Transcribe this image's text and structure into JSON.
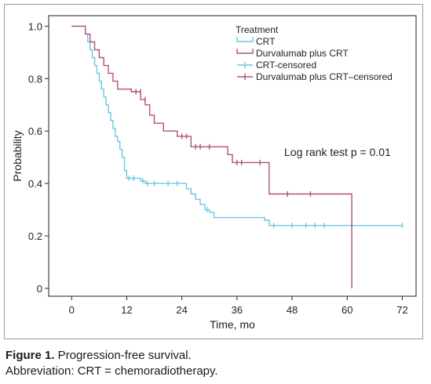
{
  "chart_data": {
    "type": "line",
    "subtype": "kaplan-meier step",
    "xlabel": "Time, mo",
    "ylabel": "Probability",
    "xlim": [
      -5,
      75
    ],
    "ylim": [
      -0.03,
      1.04
    ],
    "xticks": [
      0,
      12,
      24,
      36,
      48,
      60,
      72
    ],
    "yticks": [
      0,
      0.2,
      0.4,
      0.6,
      0.8,
      1.0
    ],
    "ytick_labels": [
      "0",
      "0.2",
      "0.4",
      "0.6",
      "0.8",
      "1.0"
    ],
    "grid": false,
    "legend": {
      "title": "Treatment",
      "placement": "top-right",
      "entries": [
        "CRT",
        "Durvalumab plus CRT",
        "CRT-censored",
        "Durvalumab plus CRT–censored"
      ]
    },
    "annotation": "Log rank test p = 0.01",
    "series": [
      {
        "name": "CRT",
        "color": "#6ec6e3",
        "steps": [
          [
            0,
            1.0
          ],
          [
            3,
            1.0
          ],
          [
            3,
            0.97
          ],
          [
            3.5,
            0.97
          ],
          [
            3.5,
            0.94
          ],
          [
            4,
            0.94
          ],
          [
            4,
            0.91
          ],
          [
            4.5,
            0.91
          ],
          [
            4.5,
            0.88
          ],
          [
            5,
            0.88
          ],
          [
            5,
            0.85
          ],
          [
            5.5,
            0.85
          ],
          [
            5.5,
            0.82
          ],
          [
            6,
            0.82
          ],
          [
            6,
            0.79
          ],
          [
            6.5,
            0.79
          ],
          [
            6.5,
            0.76
          ],
          [
            7,
            0.76
          ],
          [
            7,
            0.73
          ],
          [
            7.5,
            0.73
          ],
          [
            7.5,
            0.7
          ],
          [
            8,
            0.7
          ],
          [
            8,
            0.67
          ],
          [
            8.5,
            0.67
          ],
          [
            8.5,
            0.64
          ],
          [
            9,
            0.64
          ],
          [
            9,
            0.61
          ],
          [
            9.5,
            0.61
          ],
          [
            9.5,
            0.58
          ],
          [
            10,
            0.58
          ],
          [
            10,
            0.56
          ],
          [
            10.5,
            0.56
          ],
          [
            10.5,
            0.53
          ],
          [
            11,
            0.53
          ],
          [
            11,
            0.5
          ],
          [
            11.5,
            0.5
          ],
          [
            11.5,
            0.45
          ],
          [
            12,
            0.45
          ],
          [
            12,
            0.42
          ],
          [
            15,
            0.42
          ],
          [
            15,
            0.41
          ],
          [
            16,
            0.41
          ],
          [
            16,
            0.4
          ],
          [
            25,
            0.4
          ],
          [
            25,
            0.38
          ],
          [
            26,
            0.38
          ],
          [
            26,
            0.36
          ],
          [
            27,
            0.36
          ],
          [
            27,
            0.34
          ],
          [
            28,
            0.34
          ],
          [
            28,
            0.32
          ],
          [
            29,
            0.32
          ],
          [
            29,
            0.3
          ],
          [
            30,
            0.3
          ],
          [
            30,
            0.29
          ],
          [
            31,
            0.29
          ],
          [
            31,
            0.27
          ],
          [
            42,
            0.27
          ],
          [
            42,
            0.26
          ],
          [
            43,
            0.26
          ],
          [
            43,
            0.24
          ],
          [
            72,
            0.24
          ]
        ],
        "censored": [
          [
            12.5,
            0.42
          ],
          [
            13.5,
            0.42
          ],
          [
            15.5,
            0.41
          ],
          [
            16.5,
            0.4
          ],
          [
            18,
            0.4
          ],
          [
            21,
            0.4
          ],
          [
            23,
            0.4
          ],
          [
            29.5,
            0.3
          ],
          [
            44,
            0.24
          ],
          [
            48,
            0.24
          ],
          [
            51,
            0.24
          ],
          [
            53,
            0.24
          ],
          [
            55,
            0.24
          ],
          [
            61,
            0.24
          ],
          [
            72,
            0.24
          ]
        ]
      },
      {
        "name": "Durvalumab plus CRT",
        "color": "#b0566f",
        "steps": [
          [
            0,
            1.0
          ],
          [
            3,
            1.0
          ],
          [
            3,
            0.97
          ],
          [
            4,
            0.97
          ],
          [
            4,
            0.94
          ],
          [
            5,
            0.94
          ],
          [
            5,
            0.91
          ],
          [
            6,
            0.91
          ],
          [
            6,
            0.88
          ],
          [
            7,
            0.88
          ],
          [
            7,
            0.85
          ],
          [
            8,
            0.85
          ],
          [
            8,
            0.82
          ],
          [
            9,
            0.82
          ],
          [
            9,
            0.79
          ],
          [
            10,
            0.79
          ],
          [
            10,
            0.76
          ],
          [
            13,
            0.76
          ],
          [
            13,
            0.75
          ],
          [
            15,
            0.75
          ],
          [
            15,
            0.72
          ],
          [
            16,
            0.72
          ],
          [
            16,
            0.7
          ],
          [
            17,
            0.7
          ],
          [
            17,
            0.66
          ],
          [
            18,
            0.66
          ],
          [
            18,
            0.63
          ],
          [
            20,
            0.63
          ],
          [
            20,
            0.6
          ],
          [
            23,
            0.6
          ],
          [
            23,
            0.58
          ],
          [
            26,
            0.58
          ],
          [
            26,
            0.54
          ],
          [
            34,
            0.54
          ],
          [
            34,
            0.51
          ],
          [
            35,
            0.51
          ],
          [
            35,
            0.48
          ],
          [
            43,
            0.48
          ],
          [
            43,
            0.36
          ],
          [
            61,
            0.36
          ],
          [
            61,
            0.0
          ]
        ],
        "censored": [
          [
            14,
            0.75
          ],
          [
            15,
            0.75
          ],
          [
            16,
            0.72
          ],
          [
            24,
            0.58
          ],
          [
            25,
            0.58
          ],
          [
            27,
            0.54
          ],
          [
            28,
            0.54
          ],
          [
            30,
            0.54
          ],
          [
            36,
            0.48
          ],
          [
            37,
            0.48
          ],
          [
            41,
            0.48
          ],
          [
            47,
            0.36
          ],
          [
            52,
            0.36
          ]
        ]
      }
    ]
  },
  "caption": {
    "label": "Figure 1.",
    "title": " Progression-free survival.",
    "abbreviation": "Abbreviation: CRT = chemoradiotherapy."
  }
}
